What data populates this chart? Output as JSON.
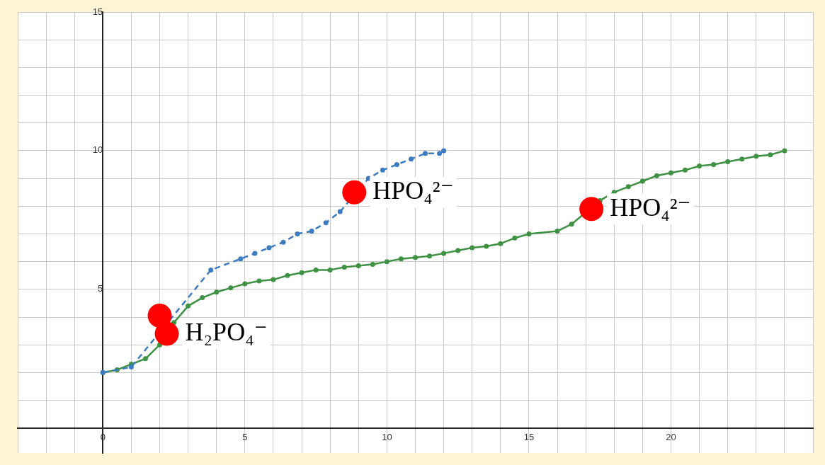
{
  "chart_data": {
    "type": "line",
    "xlim": [
      -3,
      25
    ],
    "ylim": [
      -0.9,
      15
    ],
    "xticks": [
      {
        "value": -3,
        "label": null
      },
      {
        "value": -2,
        "label": null
      },
      {
        "value": -1,
        "label": null
      },
      0,
      {
        "value": 1,
        "label": null
      },
      {
        "value": 2,
        "label": null
      },
      {
        "value": 3,
        "label": null
      },
      {
        "value": 4,
        "label": null
      },
      5,
      {
        "value": 6,
        "label": null
      },
      {
        "value": 7,
        "label": null
      },
      {
        "value": 8,
        "label": null
      },
      {
        "value": 9,
        "label": null
      },
      10,
      {
        "value": 11,
        "label": null
      },
      {
        "value": 12,
        "label": null
      },
      {
        "value": 13,
        "label": null
      },
      {
        "value": 14,
        "label": null
      },
      15,
      {
        "value": 16,
        "label": null
      },
      {
        "value": 17,
        "label": null
      },
      {
        "value": 18,
        "label": null
      },
      {
        "value": 19,
        "label": null
      },
      20,
      {
        "value": 21,
        "label": null
      },
      {
        "value": 22,
        "label": null
      },
      {
        "value": 23,
        "label": null
      },
      {
        "value": 24,
        "label": null
      },
      {
        "value": 25,
        "label": null
      }
    ],
    "yticks": [
      {
        "value": 0,
        "label": null
      },
      {
        "value": 1,
        "label": null
      },
      {
        "value": 2,
        "label": null
      },
      {
        "value": 3,
        "label": null
      },
      {
        "value": 4,
        "label": null
      },
      5,
      {
        "value": 6,
        "label": null
      },
      {
        "value": 7,
        "label": null
      },
      {
        "value": 8,
        "label": null
      },
      {
        "value": 9,
        "label": null
      },
      10,
      {
        "value": 11,
        "label": null
      },
      {
        "value": 12,
        "label": null
      },
      {
        "value": 13,
        "label": null
      },
      {
        "value": 14,
        "label": null
      },
      15
    ],
    "grid": true,
    "legend": false,
    "series": [
      {
        "color": "#3d7cc0",
        "line_style": "dashed",
        "marker": "circle",
        "x": [
          0,
          1,
          2,
          3.8,
          4.85,
          5.35,
          5.85,
          6.35,
          6.85,
          7.35,
          7.85,
          8.35,
          8.85,
          9.35,
          9.85,
          10.35,
          10.85,
          11.35,
          11.85,
          12
        ],
        "values": [
          2.0,
          2.2,
          null,
          5.7,
          6.1,
          6.3,
          6.5,
          6.7,
          7.0,
          7.1,
          7.4,
          7.8,
          null,
          9.0,
          9.3,
          9.5,
          9.7,
          9.9,
          9.9,
          10.0
        ]
      },
      {
        "color": "#3f9143",
        "line_style": "solid",
        "marker": "circle",
        "x": [
          0,
          0.5,
          1,
          1.5,
          2,
          2.5,
          3,
          3.5,
          4,
          4.5,
          5,
          5.5,
          6,
          6.5,
          7,
          7.5,
          8,
          8.5,
          9,
          9.5,
          10,
          10.5,
          11,
          11.5,
          12,
          12.5,
          13,
          13.5,
          14,
          14.5,
          15,
          16,
          16.5,
          17,
          17.5,
          18,
          18.5,
          19,
          19.5,
          20,
          20.5,
          21,
          21.5,
          22,
          22.5,
          23,
          23.5,
          24
        ],
        "values": [
          2.0,
          2.1,
          2.3,
          2.5,
          3.0,
          3.8,
          4.4,
          4.7,
          4.9,
          5.05,
          5.2,
          5.3,
          5.35,
          5.5,
          5.6,
          5.7,
          5.7,
          5.8,
          5.85,
          5.9,
          6.0,
          6.1,
          6.15,
          6.2,
          6.3,
          6.4,
          6.5,
          6.55,
          6.65,
          6.85,
          7.0,
          7.1,
          7.35,
          null,
          8.2,
          8.5,
          8.7,
          8.9,
          9.1,
          9.2,
          9.3,
          9.45,
          9.5,
          9.6,
          9.7,
          9.8,
          9.85,
          10.0
        ]
      },
      {
        "type": "scatter",
        "color": "#ff0000",
        "marker": "circle",
        "x": [
          2.0,
          2.25,
          8.85,
          17.2
        ],
        "values": [
          4.05,
          3.4,
          8.5,
          7.9
        ]
      }
    ],
    "annotations": [
      {
        "text": "H₂PO₄⁻",
        "x": 2.25,
        "y": 3.4
      },
      {
        "text": "HPO₄²⁻",
        "x": 8.85,
        "y": 8.5
      },
      {
        "text": "HPO₄²⁻",
        "x": 17.2,
        "y": 7.9
      }
    ]
  }
}
